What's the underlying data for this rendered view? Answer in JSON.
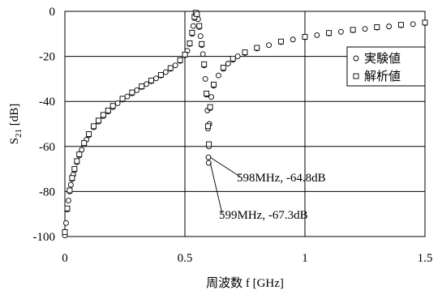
{
  "chart_data": {
    "type": "scatter",
    "xlabel": "周波数 f [GHz]",
    "ylabel_main": "S",
    "ylabel_sub": "21",
    "ylabel_unit": " [dB]",
    "xlim": [
      0,
      1.5
    ],
    "ylim": [
      -100,
      0
    ],
    "x_ticks": [
      0,
      0.5,
      1,
      1.5
    ],
    "x_tick_labels": [
      "0",
      "0.5",
      "1",
      "1.5"
    ],
    "y_ticks": [
      0,
      -20,
      -40,
      -60,
      -80,
      -100
    ],
    "y_tick_labels": [
      "0",
      "-20",
      "-40",
      "-60",
      "-80",
      "-100"
    ],
    "grid": true,
    "legend_position": "top-right",
    "series": [
      {
        "name": "実験値",
        "marker": "circle",
        "points": [
          [
            0.0,
            -99.5
          ],
          [
            0.005,
            -94
          ],
          [
            0.01,
            -88
          ],
          [
            0.015,
            -84
          ],
          [
            0.02,
            -80
          ],
          [
            0.025,
            -77
          ],
          [
            0.03,
            -74.5
          ],
          [
            0.035,
            -72.5
          ],
          [
            0.04,
            -70.5
          ],
          [
            0.05,
            -67
          ],
          [
            0.06,
            -64
          ],
          [
            0.07,
            -61.5
          ],
          [
            0.08,
            -59
          ],
          [
            0.09,
            -57
          ],
          [
            0.1,
            -55
          ],
          [
            0.12,
            -51.5
          ],
          [
            0.14,
            -49
          ],
          [
            0.16,
            -46.5
          ],
          [
            0.18,
            -44.5
          ],
          [
            0.2,
            -42.5
          ],
          [
            0.22,
            -40.8
          ],
          [
            0.24,
            -39.2
          ],
          [
            0.26,
            -37.8
          ],
          [
            0.28,
            -36.4
          ],
          [
            0.3,
            -35
          ],
          [
            0.32,
            -33.6
          ],
          [
            0.34,
            -32.3
          ],
          [
            0.36,
            -31
          ],
          [
            0.38,
            -29.8
          ],
          [
            0.4,
            -28.5
          ],
          [
            0.42,
            -27
          ],
          [
            0.44,
            -25.5
          ],
          [
            0.46,
            -24
          ],
          [
            0.48,
            -22
          ],
          [
            0.5,
            -19.5
          ],
          [
            0.51,
            -17.5
          ],
          [
            0.52,
            -14.5
          ],
          [
            0.53,
            -10
          ],
          [
            0.535,
            -6.5
          ],
          [
            0.54,
            -3
          ],
          [
            0.545,
            -1
          ],
          [
            0.55,
            -1.5
          ],
          [
            0.555,
            -3.5
          ],
          [
            0.56,
            -7
          ],
          [
            0.565,
            -11
          ],
          [
            0.57,
            -15
          ],
          [
            0.575,
            -19
          ],
          [
            0.58,
            -24
          ],
          [
            0.585,
            -30
          ],
          [
            0.59,
            -37
          ],
          [
            0.594,
            -44
          ],
          [
            0.596,
            -52
          ],
          [
            0.598,
            -64.8
          ],
          [
            0.599,
            -67.3
          ],
          [
            0.6,
            -60
          ],
          [
            0.602,
            -50
          ],
          [
            0.605,
            -43
          ],
          [
            0.61,
            -38
          ],
          [
            0.62,
            -33
          ],
          [
            0.64,
            -28.5
          ],
          [
            0.66,
            -25.5
          ],
          [
            0.68,
            -23.2
          ],
          [
            0.7,
            -21.5
          ],
          [
            0.72,
            -20
          ],
          [
            0.75,
            -18.5
          ],
          [
            0.8,
            -16.5
          ],
          [
            0.85,
            -15
          ],
          [
            0.9,
            -13.6
          ],
          [
            0.95,
            -12.5
          ],
          [
            1.0,
            -11.5
          ],
          [
            1.05,
            -10.6
          ],
          [
            1.1,
            -9.8
          ],
          [
            1.15,
            -9.1
          ],
          [
            1.2,
            -8.4
          ],
          [
            1.25,
            -7.8
          ],
          [
            1.3,
            -7.2
          ],
          [
            1.35,
            -6.7
          ],
          [
            1.4,
            -6.2
          ],
          [
            1.45,
            -5.7
          ],
          [
            1.5,
            -5.2
          ]
        ]
      },
      {
        "name": "解析値",
        "marker": "square",
        "points": [
          [
            0.0,
            -98
          ],
          [
            0.01,
            -87.5
          ],
          [
            0.02,
            -79.5
          ],
          [
            0.03,
            -74
          ],
          [
            0.04,
            -70
          ],
          [
            0.05,
            -66.5
          ],
          [
            0.06,
            -63.5
          ],
          [
            0.08,
            -58.5
          ],
          [
            0.1,
            -54.5
          ],
          [
            0.12,
            -51
          ],
          [
            0.14,
            -48.5
          ],
          [
            0.16,
            -46
          ],
          [
            0.18,
            -44
          ],
          [
            0.2,
            -42
          ],
          [
            0.24,
            -38.8
          ],
          [
            0.28,
            -36
          ],
          [
            0.32,
            -33.3
          ],
          [
            0.36,
            -30.7
          ],
          [
            0.4,
            -28.2
          ],
          [
            0.44,
            -25.2
          ],
          [
            0.48,
            -21.7
          ],
          [
            0.5,
            -19.2
          ],
          [
            0.52,
            -14.2
          ],
          [
            0.53,
            -9.5
          ],
          [
            0.54,
            -2.5
          ],
          [
            0.545,
            -0.6
          ],
          [
            0.55,
            -1.2
          ],
          [
            0.56,
            -6.5
          ],
          [
            0.57,
            -14.5
          ],
          [
            0.58,
            -23.5
          ],
          [
            0.59,
            -36.5
          ],
          [
            0.596,
            -51
          ],
          [
            0.6,
            -59
          ],
          [
            0.605,
            -42.5
          ],
          [
            0.62,
            -32.5
          ],
          [
            0.66,
            -25
          ],
          [
            0.7,
            -21
          ],
          [
            0.75,
            -18.2
          ],
          [
            0.8,
            -16.2
          ],
          [
            0.9,
            -13.4
          ],
          [
            1.0,
            -11.3
          ],
          [
            1.1,
            -9.6
          ],
          [
            1.2,
            -8.2
          ],
          [
            1.3,
            -7
          ],
          [
            1.4,
            -6
          ],
          [
            1.5,
            -5
          ]
        ]
      }
    ],
    "annotations": [
      {
        "text": "598MHz, -64.8dB",
        "x": 0.598,
        "y": -64.8
      },
      {
        "text": "599MHz, -67.3dB",
        "x": 0.599,
        "y": -67.3
      }
    ]
  }
}
